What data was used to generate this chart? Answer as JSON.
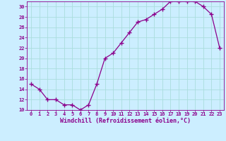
{
  "x": [
    0,
    1,
    2,
    3,
    4,
    5,
    6,
    7,
    8,
    9,
    10,
    11,
    12,
    13,
    14,
    15,
    16,
    17,
    18,
    19,
    20,
    21,
    22,
    23
  ],
  "y": [
    15,
    14,
    12,
    12,
    11,
    11,
    10,
    11,
    15,
    20,
    21,
    23,
    25,
    27,
    27.5,
    28.5,
    29.5,
    31,
    31,
    31,
    31,
    30,
    28.5,
    22
  ],
  "line_color": "#8B008B",
  "marker": "+",
  "marker_size": 4,
  "bg_color": "#cceeff",
  "grid_color": "#aadddd",
  "xlabel": "Windchill (Refroidissement éolien,°C)",
  "ylim": [
    10,
    31
  ],
  "yticks": [
    10,
    12,
    14,
    16,
    18,
    20,
    22,
    24,
    26,
    28,
    30
  ],
  "xticks": [
    0,
    1,
    2,
    3,
    4,
    5,
    6,
    7,
    8,
    9,
    10,
    11,
    12,
    13,
    14,
    15,
    16,
    17,
    18,
    19,
    20,
    21,
    22,
    23
  ],
  "font_color": "#8B008B",
  "tick_fontsize": 5.0,
  "label_fontsize": 6.0
}
